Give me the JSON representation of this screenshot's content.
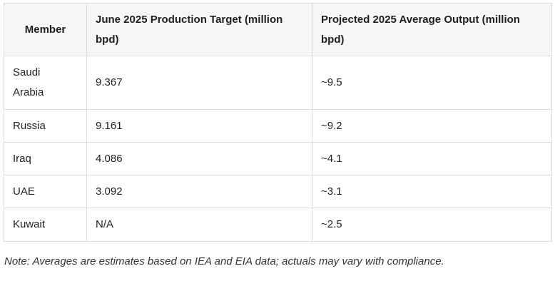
{
  "table": {
    "headers": [
      "Member",
      "June 2025 Production Target (million bpd)",
      "Projected 2025 Average Output (million bpd)"
    ],
    "rows": [
      [
        "Saudi Arabia",
        "9.367",
        "~9.5"
      ],
      [
        "Russia",
        "9.161",
        "~9.2"
      ],
      [
        "Iraq",
        "4.086",
        "~4.1"
      ],
      [
        "UAE",
        "3.092",
        "~3.1"
      ],
      [
        "Kuwait",
        "N/A",
        "~2.5"
      ]
    ]
  },
  "note": "Note: Averages are estimates based on IEA and EIA data; actuals may vary with compliance."
}
